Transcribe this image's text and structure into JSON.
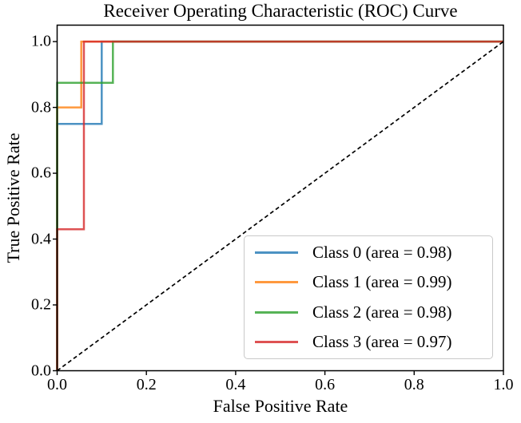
{
  "chart_data": {
    "type": "line",
    "title": "Receiver Operating Characteristic (ROC) Curve",
    "xlabel": "False Positive Rate",
    "ylabel": "True Positive Rate",
    "xlim": [
      0.0,
      1.0
    ],
    "ylim": [
      0.0,
      1.05
    ],
    "xtick_values": [
      0.0,
      0.2,
      0.4,
      0.6,
      0.8,
      1.0
    ],
    "xtick_labels": [
      "0.0",
      "0.2",
      "0.4",
      "0.6",
      "0.8",
      "1.0"
    ],
    "ytick_values": [
      0.0,
      0.2,
      0.4,
      0.6,
      0.8,
      1.0
    ],
    "ytick_labels": [
      "0.0",
      "0.2",
      "0.4",
      "0.6",
      "0.8",
      "1.0"
    ],
    "grid": false,
    "legend_position": "lower right",
    "line_opacity": 0.8,
    "series": [
      {
        "name": "class-0",
        "label": "Class 0 (area = 0.98)",
        "area": 0.98,
        "color": "#1f77b4",
        "points": [
          [
            0,
            0
          ],
          [
            0,
            0.75
          ],
          [
            0.1,
            0.75
          ],
          [
            0.1,
            1.0
          ],
          [
            1.0,
            1.0
          ]
        ]
      },
      {
        "name": "class-1",
        "label": "Class 1 (area = 0.99)",
        "area": 0.99,
        "color": "#ff7f0e",
        "points": [
          [
            0,
            0
          ],
          [
            0,
            0.8
          ],
          [
            0.054,
            0.8
          ],
          [
            0.054,
            1.0
          ],
          [
            1.0,
            1.0
          ]
        ]
      },
      {
        "name": "class-2",
        "label": "Class 2 (area = 0.98)",
        "area": 0.98,
        "color": "#2ca02c",
        "points": [
          [
            0,
            0
          ],
          [
            0,
            0.875
          ],
          [
            0.125,
            0.875
          ],
          [
            0.125,
            1.0
          ],
          [
            1.0,
            1.0
          ]
        ]
      },
      {
        "name": "class-3",
        "label": "Class 3 (area = 0.97)",
        "area": 0.97,
        "color": "#d62728",
        "points": [
          [
            0,
            0
          ],
          [
            0,
            0.43
          ],
          [
            0.06,
            0.43
          ],
          [
            0.06,
            1.0
          ],
          [
            1.0,
            1.0
          ]
        ]
      }
    ],
    "reference_line": {
      "name": "chance-diagonal",
      "style": "dashed",
      "color": "#000000",
      "points": [
        [
          0,
          0
        ],
        [
          1.0,
          1.0
        ]
      ]
    }
  }
}
